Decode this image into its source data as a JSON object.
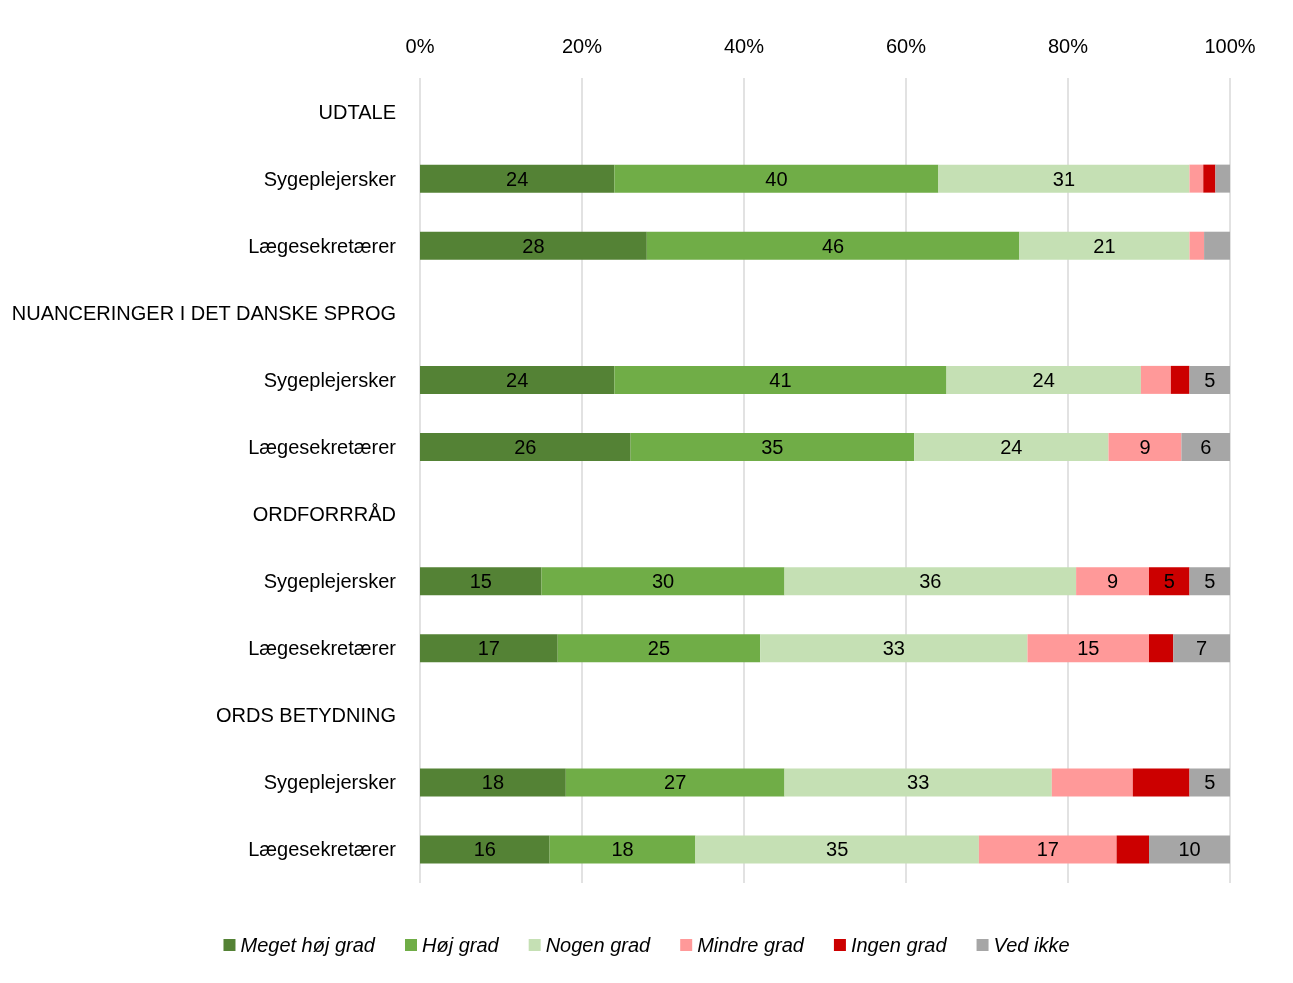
{
  "chart_data": {
    "type": "bar",
    "orientation": "horizontal",
    "stacked": true,
    "categories": [
      "UDTALE",
      "Sygeplejersker",
      "Lægesekretærer",
      "NUANCERINGER I DET DANSKE SPROG",
      "Sygeplejersker",
      "Lægesekretærer",
      "ORDFORRRÅD",
      "Sygeplejersker",
      "Lægesekretærer",
      "ORDS BETYDNING",
      "Sygeplejersker",
      "Lægesekretærer"
    ],
    "series": [
      {
        "name": "Meget høj grad",
        "color": "#548235",
        "values": [
          null,
          24,
          28,
          null,
          24,
          26,
          null,
          15,
          17,
          null,
          18,
          16
        ],
        "value_labels": [
          null,
          "24",
          "28",
          null,
          "24",
          "26",
          null,
          "15",
          "17",
          null,
          "18",
          "16"
        ]
      },
      {
        "name": "Høj grad",
        "color": "#70ad47",
        "values": [
          null,
          40,
          46,
          null,
          41,
          35,
          null,
          30,
          25,
          null,
          27,
          18
        ],
        "value_labels": [
          null,
          "40",
          "46",
          null,
          "41",
          "35",
          null,
          "30",
          "25",
          null,
          "27",
          "18"
        ]
      },
      {
        "name": "Nogen grad",
        "color": "#c5e0b4",
        "values": [
          null,
          31,
          21,
          null,
          24,
          24,
          null,
          36,
          33,
          null,
          33,
          35
        ],
        "value_labels": [
          null,
          "31",
          "21",
          null,
          "24",
          "24",
          null,
          "36",
          "33",
          null,
          "33",
          "35"
        ]
      },
      {
        "name": "Mindre grad",
        "color": "#ff9999",
        "values": [
          null,
          1.7,
          1.8,
          null,
          3.7,
          9,
          null,
          9,
          15,
          null,
          10,
          17
        ],
        "value_labels": [
          null,
          null,
          null,
          null,
          null,
          "9",
          null,
          "9",
          "15",
          null,
          null,
          "17"
        ]
      },
      {
        "name": "Ingen grad",
        "color": "#cc0000",
        "values": [
          null,
          1.5,
          null,
          null,
          2.3,
          null,
          null,
          5,
          3,
          null,
          7,
          4
        ],
        "value_labels": [
          null,
          null,
          null,
          null,
          null,
          null,
          null,
          "5",
          null,
          null,
          null,
          null
        ]
      },
      {
        "name": "Ved ikke",
        "color": "#a6a6a6",
        "values": [
          null,
          1.8,
          3.2,
          null,
          5,
          6,
          null,
          5,
          7,
          null,
          5,
          10
        ],
        "value_labels": [
          null,
          null,
          null,
          null,
          "5",
          "6",
          null,
          "5",
          "7",
          null,
          "5",
          "10"
        ]
      }
    ],
    "xlim": [
      0,
      100
    ],
    "xticks": [
      {
        "value": 0,
        "label": "0%"
      },
      {
        "value": 20,
        "label": "20%"
      },
      {
        "value": 40,
        "label": "40%"
      },
      {
        "value": 60,
        "label": "60%"
      },
      {
        "value": 80,
        "label": "80%"
      },
      {
        "value": 100,
        "label": "100%"
      }
    ],
    "grid": "x",
    "legend": "bottom"
  }
}
